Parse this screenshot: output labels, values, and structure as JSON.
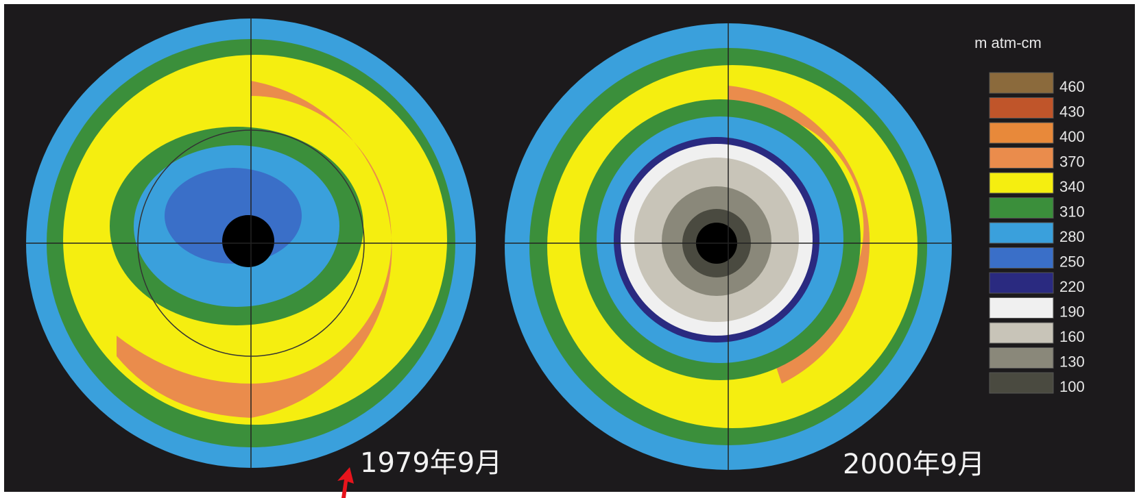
{
  "legend": {
    "unit": "m atm-cm",
    "items": [
      {
        "label": 460,
        "color": "#8b6a3c"
      },
      {
        "label": 430,
        "color": "#c0552a"
      },
      {
        "label": 400,
        "color": "#e8893a"
      },
      {
        "label": 370,
        "color": "#ea8c4c"
      },
      {
        "label": 340,
        "color": "#f5ee10"
      },
      {
        "label": 310,
        "color": "#3b8f3b"
      },
      {
        "label": 280,
        "color": "#3aa0dc"
      },
      {
        "label": 250,
        "color": "#3a6fc8"
      },
      {
        "label": 220,
        "color": "#2a2a80"
      },
      {
        "label": 190,
        "color": "#f0f0f0"
      },
      {
        "label": 160,
        "color": "#c8c4b8"
      },
      {
        "label": 130,
        "color": "#8a887a"
      },
      {
        "label": 100,
        "color": "#4a4a40"
      }
    ]
  },
  "maps": [
    {
      "caption": "1979年9月"
    },
    {
      "caption": "2000年9月"
    }
  ]
}
